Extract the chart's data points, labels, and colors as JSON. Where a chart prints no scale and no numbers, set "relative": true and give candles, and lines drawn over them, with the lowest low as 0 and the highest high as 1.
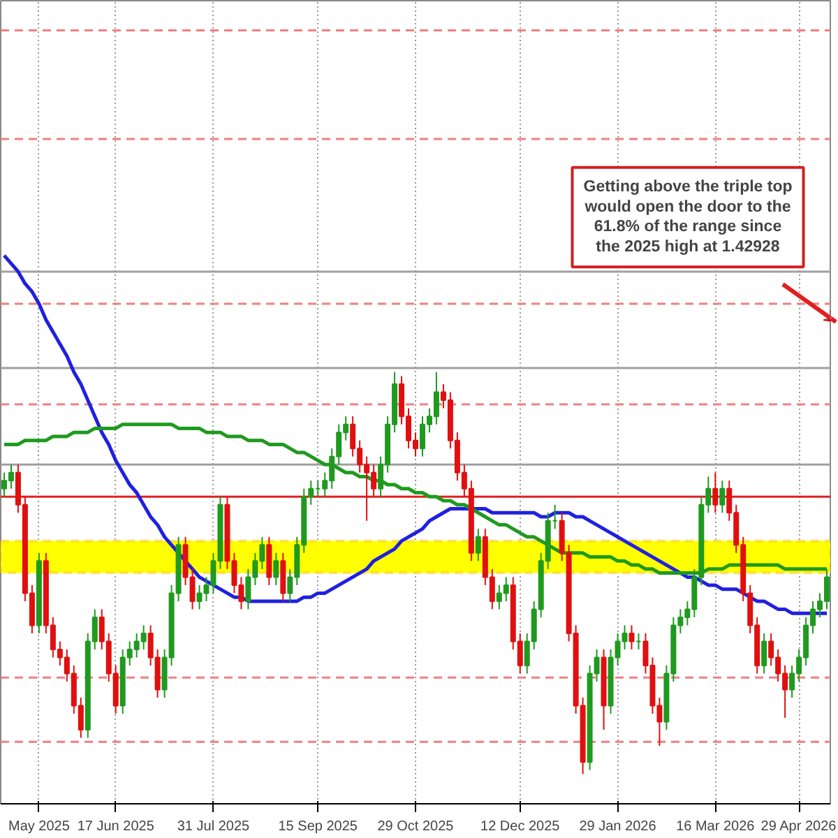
{
  "chart_data": {
    "type": "candlestick",
    "relative": true,
    "categories": [
      null,
      null,
      null,
      null,
      null,
      "May 2025",
      null,
      null,
      null,
      null,
      null,
      null,
      null,
      null,
      null,
      null,
      "17 Jun 2025",
      null,
      null,
      null,
      null,
      null,
      null,
      null,
      null,
      null,
      null,
      null,
      null,
      null,
      "31 Jul 2025",
      null,
      null,
      null,
      null,
      null,
      null,
      null,
      null,
      null,
      null,
      null,
      null,
      null,
      null,
      "15 Sep 2025",
      null,
      null,
      null,
      null,
      null,
      null,
      null,
      null,
      null,
      null,
      null,
      null,
      null,
      "29 Oct 2025",
      null,
      null,
      null,
      null,
      null,
      null,
      null,
      null,
      null,
      null,
      null,
      null,
      null,
      null,
      "12 Dec 2025",
      null,
      null,
      null,
      null,
      null,
      null,
      null,
      null,
      null,
      null,
      null,
      null,
      null,
      "29 Jan 2026",
      null,
      null,
      null,
      null,
      null,
      null,
      null,
      null,
      null,
      null,
      null,
      null,
      null,
      "16 Mar 2026",
      null,
      null,
      null,
      null,
      null,
      null,
      null,
      null,
      null,
      null,
      null,
      "29 Apr 2026",
      null,
      null,
      null,
      null
    ],
    "ohlc": [
      [
        0.71,
        0.75,
        0.69,
        0.73
      ],
      [
        0.73,
        0.77,
        0.71,
        0.75
      ],
      [
        0.75,
        0.77,
        0.65,
        0.67
      ],
      [
        0.67,
        0.69,
        0.43,
        0.45
      ],
      [
        0.45,
        0.47,
        0.35,
        0.37
      ],
      [
        0.37,
        0.55,
        0.35,
        0.53
      ],
      [
        0.53,
        0.55,
        0.35,
        0.37
      ],
      [
        0.37,
        0.39,
        0.29,
        0.31
      ],
      [
        0.31,
        0.33,
        0.27,
        0.29
      ],
      [
        0.29,
        0.31,
        0.23,
        0.25
      ],
      [
        0.25,
        0.27,
        0.15,
        0.17
      ],
      [
        0.17,
        0.19,
        0.09,
        0.11
      ],
      [
        0.11,
        0.35,
        0.09,
        0.33
      ],
      [
        0.33,
        0.41,
        0.31,
        0.39
      ],
      [
        0.39,
        0.41,
        0.31,
        0.33
      ],
      [
        0.33,
        0.35,
        0.23,
        0.25
      ],
      [
        0.25,
        0.27,
        0.15,
        0.17
      ],
      [
        0.17,
        0.31,
        0.15,
        0.29
      ],
      [
        0.29,
        0.33,
        0.27,
        0.31
      ],
      [
        0.31,
        0.35,
        0.29,
        0.33
      ],
      [
        0.33,
        0.37,
        0.31,
        0.35
      ],
      [
        0.35,
        0.37,
        0.27,
        0.29
      ],
      [
        0.29,
        0.31,
        0.19,
        0.21
      ],
      [
        0.21,
        0.31,
        0.19,
        0.29
      ],
      [
        0.29,
        0.47,
        0.27,
        0.45
      ],
      [
        0.45,
        0.59,
        0.43,
        0.57
      ],
      [
        0.57,
        0.59,
        0.47,
        0.49
      ],
      [
        0.49,
        0.51,
        0.41,
        0.43
      ],
      [
        0.43,
        0.47,
        0.41,
        0.45
      ],
      [
        0.45,
        0.49,
        0.43,
        0.47
      ],
      [
        0.47,
        0.55,
        0.45,
        0.53
      ],
      [
        0.53,
        0.69,
        0.51,
        0.67
      ],
      [
        0.67,
        0.69,
        0.51,
        0.53
      ],
      [
        0.53,
        0.55,
        0.45,
        0.47
      ],
      [
        0.47,
        0.49,
        0.41,
        0.43
      ],
      [
        0.43,
        0.51,
        0.41,
        0.49
      ],
      [
        0.49,
        0.55,
        0.47,
        0.53
      ],
      [
        0.53,
        0.59,
        0.51,
        0.57
      ],
      [
        0.57,
        0.59,
        0.47,
        0.49
      ],
      [
        0.49,
        0.55,
        0.47,
        0.53
      ],
      [
        0.53,
        0.55,
        0.43,
        0.45
      ],
      [
        0.45,
        0.51,
        0.43,
        0.49
      ],
      [
        0.49,
        0.59,
        0.47,
        0.57
      ],
      [
        0.57,
        0.71,
        0.55,
        0.69
      ],
      [
        0.69,
        0.73,
        0.67,
        0.71
      ],
      [
        0.71,
        0.73,
        0.69,
        0.71
      ],
      [
        0.71,
        0.75,
        0.69,
        0.73
      ],
      [
        0.73,
        0.81,
        0.71,
        0.79
      ],
      [
        0.79,
        0.87,
        0.77,
        0.85
      ],
      [
        0.85,
        0.89,
        0.83,
        0.87
      ],
      [
        0.87,
        0.89,
        0.79,
        0.81
      ],
      [
        0.81,
        0.83,
        0.75,
        0.77
      ],
      [
        0.77,
        0.79,
        0.63,
        0.75
      ],
      [
        0.75,
        0.77,
        0.69,
        0.71
      ],
      [
        0.71,
        0.79,
        0.69,
        0.77
      ],
      [
        0.77,
        0.89,
        0.75,
        0.87
      ],
      [
        0.87,
        1.0,
        0.85,
        0.97
      ],
      [
        0.97,
        0.99,
        0.87,
        0.89
      ],
      [
        0.89,
        0.91,
        0.81,
        0.83
      ],
      [
        0.83,
        0.85,
        0.79,
        0.81
      ],
      [
        0.81,
        0.89,
        0.79,
        0.87
      ],
      [
        0.87,
        0.91,
        0.85,
        0.89
      ],
      [
        0.89,
        1.0,
        0.87,
        0.95
      ],
      [
        0.95,
        0.97,
        0.91,
        0.93
      ],
      [
        0.93,
        0.95,
        0.81,
        0.83
      ],
      [
        0.83,
        0.85,
        0.73,
        0.75
      ],
      [
        0.75,
        0.77,
        0.69,
        0.71
      ],
      [
        0.71,
        0.73,
        0.53,
        0.55
      ],
      [
        0.55,
        0.61,
        0.53,
        0.59
      ],
      [
        0.59,
        0.61,
        0.47,
        0.49
      ],
      [
        0.49,
        0.51,
        0.41,
        0.43
      ],
      [
        0.43,
        0.47,
        0.41,
        0.45
      ],
      [
        0.45,
        0.49,
        0.43,
        0.47
      ],
      [
        0.47,
        0.49,
        0.31,
        0.33
      ],
      [
        0.33,
        0.35,
        0.25,
        0.27
      ],
      [
        0.27,
        0.35,
        0.25,
        0.33
      ],
      [
        0.33,
        0.43,
        0.31,
        0.41
      ],
      [
        0.41,
        0.55,
        0.39,
        0.53
      ],
      [
        0.53,
        0.65,
        0.51,
        0.63
      ],
      [
        0.63,
        0.67,
        0.61,
        0.63
      ],
      [
        0.63,
        0.65,
        0.53,
        0.55
      ],
      [
        0.55,
        0.57,
        0.33,
        0.35
      ],
      [
        0.35,
        0.37,
        0.15,
        0.17
      ],
      [
        0.17,
        0.19,
        0.0,
        0.03
      ],
      [
        0.03,
        0.27,
        0.01,
        0.25
      ],
      [
        0.25,
        0.31,
        0.23,
        0.29
      ],
      [
        0.29,
        0.31,
        0.11,
        0.17
      ],
      [
        0.17,
        0.31,
        0.15,
        0.29
      ],
      [
        0.29,
        0.35,
        0.27,
        0.33
      ],
      [
        0.33,
        0.37,
        0.31,
        0.35
      ],
      [
        0.35,
        0.37,
        0.31,
        0.33
      ],
      [
        0.33,
        0.35,
        0.31,
        0.33
      ],
      [
        0.33,
        0.35,
        0.25,
        0.27
      ],
      [
        0.27,
        0.29,
        0.15,
        0.17
      ],
      [
        0.17,
        0.19,
        0.07,
        0.13
      ],
      [
        0.13,
        0.27,
        0.11,
        0.25
      ],
      [
        0.25,
        0.39,
        0.23,
        0.37
      ],
      [
        0.37,
        0.41,
        0.35,
        0.39
      ],
      [
        0.39,
        0.43,
        0.37,
        0.41
      ],
      [
        0.41,
        0.51,
        0.39,
        0.49
      ],
      [
        0.49,
        0.69,
        0.47,
        0.67
      ],
      [
        0.67,
        0.74,
        0.65,
        0.71
      ],
      [
        0.71,
        0.75,
        0.65,
        0.67
      ],
      [
        0.67,
        0.73,
        0.65,
        0.71
      ],
      [
        0.71,
        0.73,
        0.63,
        0.65
      ],
      [
        0.65,
        0.67,
        0.55,
        0.57
      ],
      [
        0.57,
        0.59,
        0.43,
        0.45
      ],
      [
        0.45,
        0.47,
        0.35,
        0.37
      ],
      [
        0.37,
        0.39,
        0.25,
        0.27
      ],
      [
        0.27,
        0.35,
        0.25,
        0.33
      ],
      [
        0.33,
        0.35,
        0.27,
        0.29
      ],
      [
        0.29,
        0.31,
        0.23,
        0.25
      ],
      [
        0.25,
        0.27,
        0.14,
        0.21
      ],
      [
        0.21,
        0.27,
        0.19,
        0.25
      ],
      [
        0.25,
        0.31,
        0.23,
        0.29
      ],
      [
        0.29,
        0.39,
        0.27,
        0.37
      ],
      [
        0.37,
        0.43,
        0.35,
        0.41
      ],
      [
        0.41,
        0.45,
        0.39,
        0.43
      ],
      [
        0.43,
        0.51,
        0.41,
        0.49
      ]
    ],
    "series": [
      {
        "type": "line",
        "color": "#2020e0",
        "values": [
          1.29,
          1.27,
          1.25,
          1.22,
          1.2,
          1.17,
          1.13,
          1.1,
          1.07,
          1.04,
          1.0,
          0.97,
          0.93,
          0.89,
          0.85,
          0.82,
          0.78,
          0.75,
          0.72,
          0.7,
          0.67,
          0.64,
          0.62,
          0.59,
          0.57,
          0.55,
          0.53,
          0.51,
          0.49,
          0.48,
          0.47,
          0.46,
          0.45,
          0.44,
          0.44,
          0.43,
          0.43,
          0.43,
          0.43,
          0.43,
          0.43,
          0.43,
          0.43,
          0.44,
          0.44,
          0.45,
          0.45,
          0.46,
          0.47,
          0.48,
          0.49,
          0.5,
          0.51,
          0.53,
          0.54,
          0.55,
          0.56,
          0.58,
          0.59,
          0.6,
          0.61,
          0.63,
          0.64,
          0.65,
          0.66,
          0.66,
          0.66,
          0.66,
          0.66,
          0.66,
          0.65,
          0.65,
          0.65,
          0.65,
          0.65,
          0.65,
          0.65,
          0.64,
          0.64,
          0.65,
          0.65,
          0.65,
          0.64,
          0.64,
          0.63,
          0.62,
          0.61,
          0.6,
          0.59,
          0.58,
          0.57,
          0.56,
          0.55,
          0.54,
          0.53,
          0.52,
          0.51,
          0.5,
          0.49,
          0.49,
          0.48,
          0.47,
          0.47,
          0.46,
          0.46,
          0.46,
          0.45,
          0.44,
          0.43,
          0.43,
          0.42,
          0.41,
          0.41,
          0.4,
          0.4,
          0.4,
          0.4,
          0.4,
          0.4
        ]
      },
      {
        "type": "line",
        "color": "#1f9a1f",
        "values": [
          0.82,
          0.82,
          0.82,
          0.83,
          0.83,
          0.83,
          0.83,
          0.84,
          0.84,
          0.84,
          0.85,
          0.85,
          0.85,
          0.86,
          0.86,
          0.86,
          0.86,
          0.87,
          0.87,
          0.87,
          0.87,
          0.87,
          0.87,
          0.87,
          0.87,
          0.86,
          0.86,
          0.86,
          0.86,
          0.85,
          0.85,
          0.85,
          0.84,
          0.84,
          0.84,
          0.83,
          0.83,
          0.83,
          0.82,
          0.82,
          0.82,
          0.81,
          0.8,
          0.8,
          0.79,
          0.78,
          0.77,
          0.77,
          0.76,
          0.75,
          0.75,
          0.74,
          0.74,
          0.73,
          0.73,
          0.72,
          0.72,
          0.71,
          0.71,
          0.7,
          0.7,
          0.69,
          0.69,
          0.68,
          0.68,
          0.67,
          0.67,
          0.66,
          0.65,
          0.64,
          0.63,
          0.62,
          0.62,
          0.61,
          0.6,
          0.59,
          0.59,
          0.58,
          0.57,
          0.56,
          0.55,
          0.55,
          0.55,
          0.55,
          0.54,
          0.54,
          0.54,
          0.54,
          0.53,
          0.53,
          0.52,
          0.52,
          0.51,
          0.51,
          0.5,
          0.5,
          0.5,
          0.5,
          0.5,
          0.5,
          0.5,
          0.51,
          0.51,
          0.51,
          0.52,
          0.52,
          0.52,
          0.52,
          0.52,
          0.52,
          0.52,
          0.52,
          0.51,
          0.51,
          0.51,
          0.51,
          0.51,
          0.51,
          0.51
        ]
      }
    ],
    "bands": [
      {
        "axis": "y",
        "from": 0.5,
        "to": 0.58,
        "color": "#ffff00"
      }
    ],
    "ref_lines": [
      {
        "axis": "y",
        "value": 0.69,
        "color": "#e02020",
        "line_style": "solid"
      },
      {
        "axis": "y",
        "value": 0.92,
        "color": "#f08080",
        "line_style": "dashed"
      },
      {
        "axis": "y",
        "value": 0.24,
        "color": "#f08080",
        "line_style": "dashed"
      },
      {
        "axis": "y",
        "value": 0.08,
        "color": "#f08080",
        "line_style": "dashed"
      },
      {
        "axis": "y",
        "value": 1.17,
        "color": "#f08080",
        "line_style": "dashed"
      },
      {
        "axis": "y",
        "value": 1.58,
        "color": "#f08080",
        "line_style": "dashed"
      },
      {
        "axis": "y",
        "value": 1.85,
        "color": "#f08080",
        "line_style": "dashed"
      },
      {
        "axis": "y",
        "value": 0.77,
        "color": "#a0a0a0",
        "line_style": "solid"
      },
      {
        "axis": "y",
        "value": 1.01,
        "color": "#a0a0a0",
        "line_style": "solid"
      },
      {
        "axis": "y",
        "value": 1.25,
        "color": "#a0a0a0",
        "line_style": "solid"
      }
    ],
    "annotations": [
      "Getting above the triple top\nwould open the door to the\n61.8% of the range since\nthe 2025 high at 1.42928"
    ],
    "grid": "x"
  }
}
